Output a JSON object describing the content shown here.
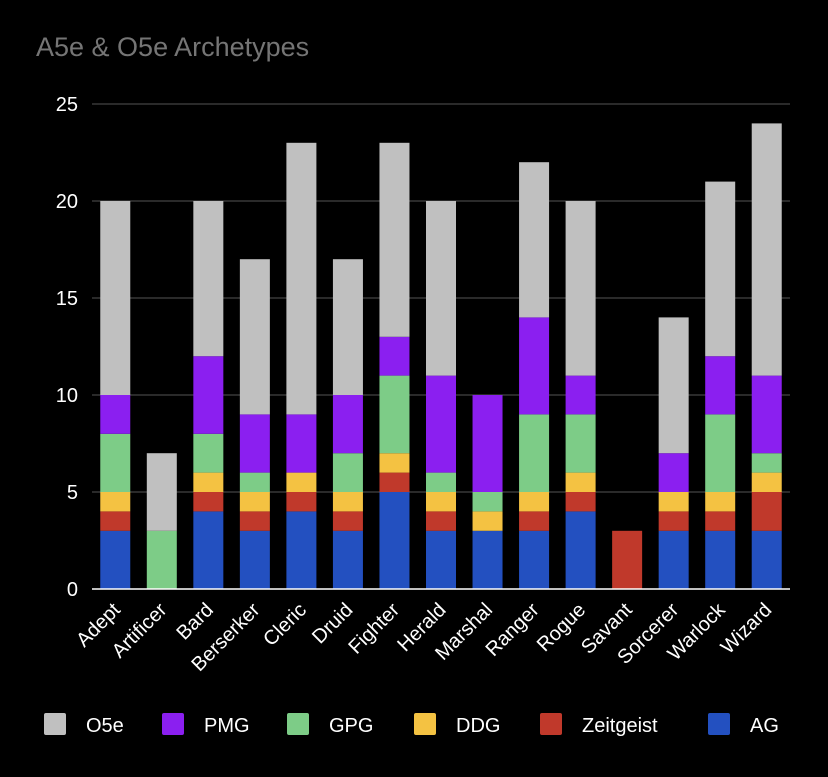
{
  "chart_data": {
    "type": "bar",
    "stacked": true,
    "title": "A5e & O5e Archetypes",
    "xlabel": "",
    "ylabel": "",
    "ylim": [
      0,
      25
    ],
    "yticks": [
      0,
      5,
      10,
      15,
      20,
      25
    ],
    "grid": true,
    "legend_position": "bottom",
    "categories": [
      "Adept",
      "Artificer",
      "Bard",
      "Berserker",
      "Cleric",
      "Druid",
      "Fighter",
      "Herald",
      "Marshal",
      "Ranger",
      "Rogue",
      "Savant",
      "Sorcerer",
      "Warlock",
      "Wizard"
    ],
    "series": [
      {
        "name": "AG",
        "color": "#2350c0",
        "values": [
          3,
          0,
          4,
          3,
          4,
          3,
          5,
          3,
          3,
          3,
          4,
          0,
          3,
          3,
          3
        ]
      },
      {
        "name": "Zeitgeist",
        "color": "#c0392b",
        "values": [
          1,
          0,
          1,
          1,
          1,
          1,
          1,
          1,
          0,
          1,
          1,
          3,
          1,
          1,
          2
        ]
      },
      {
        "name": "DDG",
        "color": "#f4c242",
        "values": [
          1,
          0,
          1,
          1,
          1,
          1,
          1,
          1,
          1,
          1,
          1,
          0,
          1,
          1,
          1
        ]
      },
      {
        "name": "GPG",
        "color": "#7dcc87",
        "values": [
          3,
          3,
          2,
          1,
          0,
          2,
          4,
          1,
          1,
          4,
          3,
          0,
          0,
          4,
          1
        ]
      },
      {
        "name": "PMG",
        "color": "#8b1ff0",
        "values": [
          2,
          0,
          4,
          3,
          3,
          3,
          2,
          5,
          5,
          5,
          2,
          0,
          2,
          3,
          4
        ]
      },
      {
        "name": "O5e",
        "color": "#c0c0c0",
        "values": [
          10,
          4,
          8,
          8,
          14,
          7,
          10,
          9,
          0,
          8,
          9,
          0,
          7,
          9,
          13
        ]
      }
    ],
    "legend_order": [
      "O5e",
      "PMG",
      "GPG",
      "DDG",
      "Zeitgeist",
      "AG"
    ],
    "gridline_color": "#444444",
    "axis_color": "#ffffff"
  }
}
